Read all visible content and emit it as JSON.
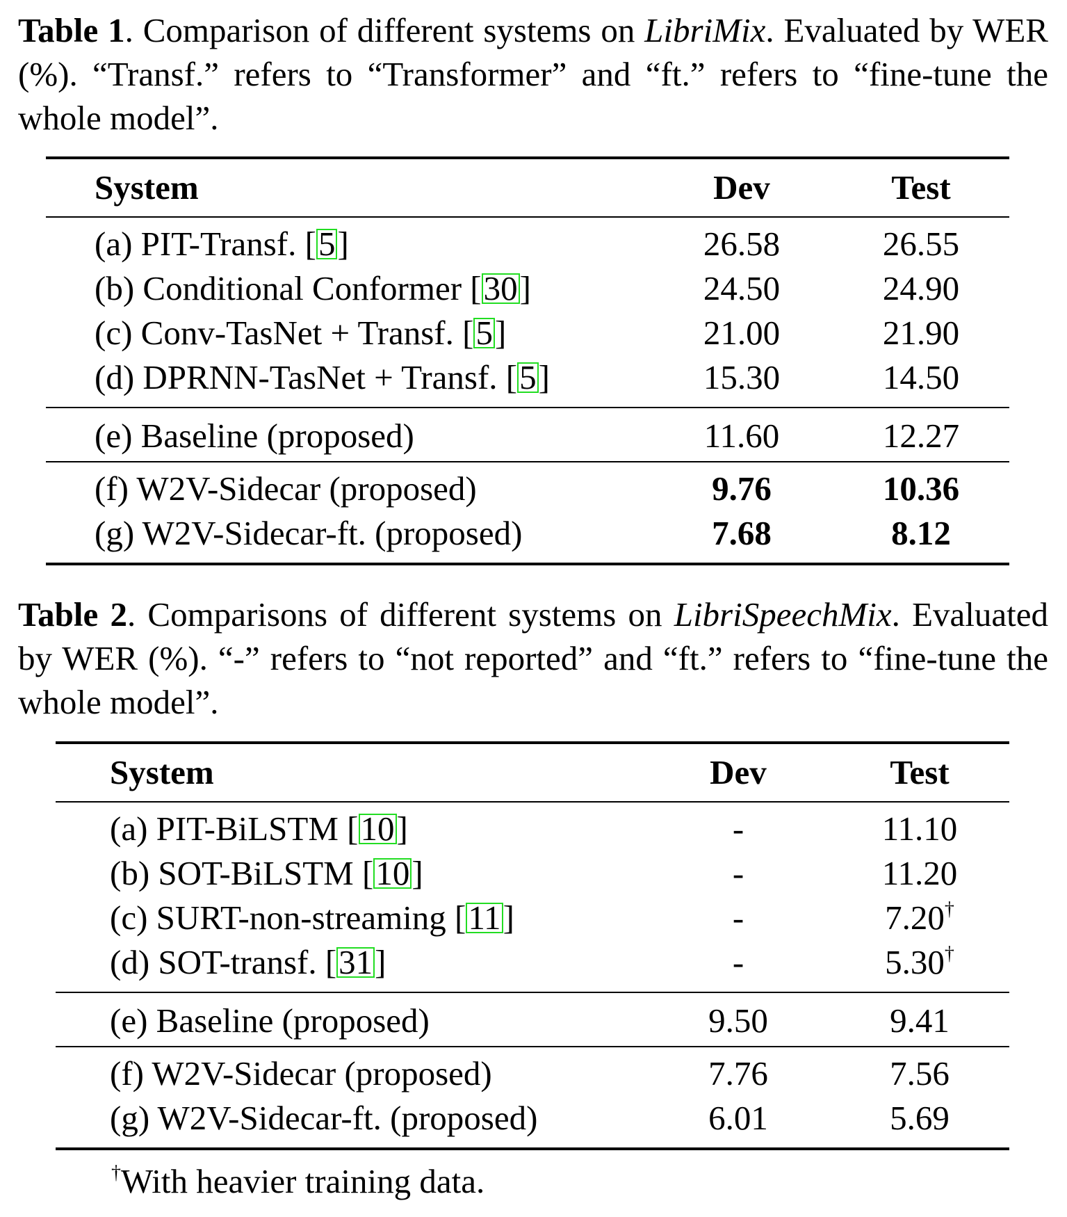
{
  "table1": {
    "caption_label": "Table 1",
    "caption_pre": ". Comparison of different systems on ",
    "caption_dataset": "LibriMix",
    "caption_post": ". Evaluated by WER (%). “Transf.” refers to “Transformer” and “ft.” refers to “fine-tune the whole model”.",
    "headers": {
      "system": "System",
      "dev": "Dev",
      "test": "Test"
    },
    "rows": [
      {
        "system": "(a) PIT-Transf. [",
        "ref": "5",
        "close": "]",
        "dev": "26.58",
        "test": "26.55"
      },
      {
        "system": "(b) Conditional Conformer [",
        "ref": "30",
        "close": "]",
        "dev": "24.50",
        "test": "24.90"
      },
      {
        "system": "(c) Conv-TasNet + Transf. [",
        "ref": "5",
        "close": "]",
        "dev": "21.00",
        "test": "21.90"
      },
      {
        "system": "(d) DPRNN-TasNet + Transf. [",
        "ref": "5",
        "close": "]",
        "dev": "15.30",
        "test": "14.50"
      },
      {
        "system": "(e) Baseline (proposed)",
        "dev": "11.60",
        "test": "12.27"
      },
      {
        "system": "(f) W2V-Sidecar (proposed)",
        "dev": "9.76",
        "test": "10.36"
      },
      {
        "system": "(g) W2V-Sidecar-ft. (proposed)",
        "dev": "7.68",
        "test": "8.12"
      }
    ]
  },
  "table2": {
    "caption_label": "Table 2",
    "caption_pre": ". Comparisons of different systems on ",
    "caption_dataset": "LibriSpeechMix",
    "caption_post": ". Evaluated by WER (%). “-” refers to “not reported” and “ft.” refers to “fine-tune the whole model”.",
    "headers": {
      "system": "System",
      "dev": "Dev",
      "test": "Test"
    },
    "rows": [
      {
        "system": "(a) PIT-BiLSTM [",
        "ref": "10",
        "close": "]",
        "dev": "-",
        "test": "11.10"
      },
      {
        "system": "(b) SOT-BiLSTM [",
        "ref": "10",
        "close": "]",
        "dev": "-",
        "test": "11.20"
      },
      {
        "system": "(c) SURT-non-streaming [",
        "ref": "11",
        "close": "]",
        "dev": "-",
        "test": "7.20",
        "mark": "†"
      },
      {
        "system": "(d) SOT-transf. [",
        "ref": "31",
        "close": "]",
        "dev": "-",
        "test": "5.30",
        "mark": "†"
      },
      {
        "system": "(e) Baseline (proposed)",
        "dev": "9.50",
        "test": "9.41"
      },
      {
        "system": "(f) W2V-Sidecar (proposed)",
        "dev": "7.76",
        "test": "7.56"
      },
      {
        "system": "(g) W2V-Sidecar-ft. (proposed)",
        "dev": "6.01",
        "test": "5.69"
      }
    ],
    "footnote_mark": "†",
    "footnote_text": "With heavier training data."
  }
}
